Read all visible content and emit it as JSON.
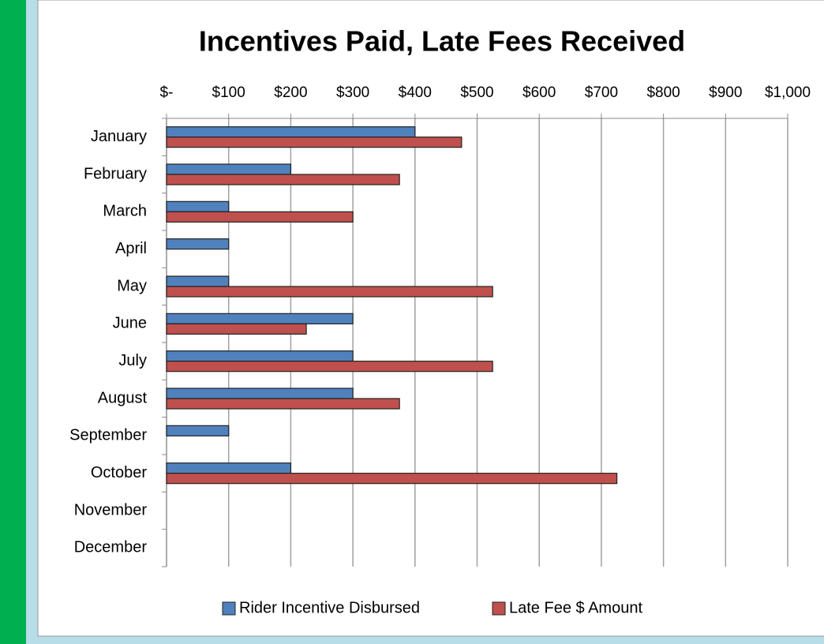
{
  "chart_data": {
    "type": "bar",
    "orientation": "horizontal",
    "title": "Incentives Paid, Late Fees Received",
    "categories": [
      "January",
      "February",
      "March",
      "April",
      "May",
      "June",
      "July",
      "August",
      "September",
      "October",
      "November",
      "December"
    ],
    "series": [
      {
        "name": "Rider Incentive Disbursed",
        "color": "#4f81bd",
        "values": [
          400,
          200,
          100,
          100,
          100,
          300,
          300,
          300,
          100,
          200,
          null,
          null
        ]
      },
      {
        "name": "Late Fee $ Amount",
        "color": "#c0504d",
        "values": [
          475,
          375,
          300,
          null,
          525,
          225,
          525,
          375,
          null,
          725,
          null,
          null
        ]
      }
    ],
    "xlim": [
      0,
      1000
    ],
    "xticks": [
      {
        "value": 0,
        "label": "$-"
      },
      {
        "value": 100,
        "label": "$100"
      },
      {
        "value": 200,
        "label": "$200"
      },
      {
        "value": 300,
        "label": "$300"
      },
      {
        "value": 400,
        "label": "$400"
      },
      {
        "value": 500,
        "label": "$500"
      },
      {
        "value": 600,
        "label": "$600"
      },
      {
        "value": 700,
        "label": "$700"
      },
      {
        "value": 800,
        "label": "$800"
      },
      {
        "value": 900,
        "label": "$900"
      },
      {
        "value": 1000,
        "label": "$1,000"
      }
    ],
    "grid": true,
    "legend": "bottom"
  }
}
